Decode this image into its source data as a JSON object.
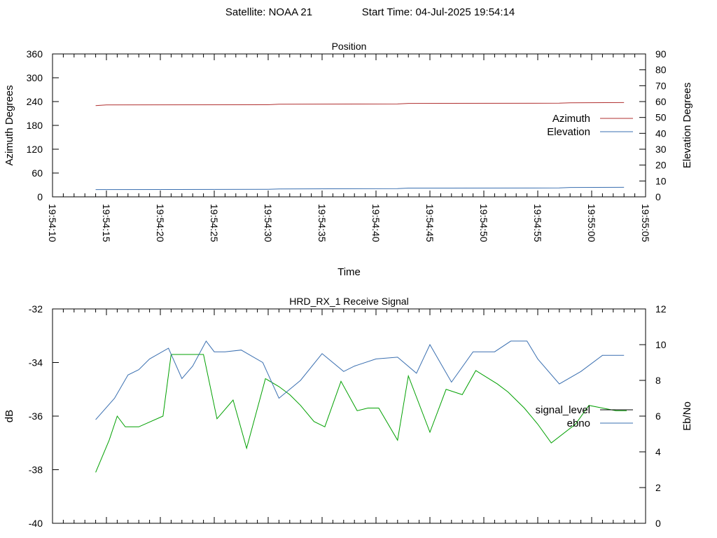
{
  "header": {
    "satellite_text": "Satellite: NOAA 21",
    "start_time_text": "Start Time: 04-Jul-2025 19:54:14"
  },
  "chart_data": [
    {
      "type": "line",
      "title": "Position",
      "xlabel": "Time",
      "ylabel": "Azimuth Degrees",
      "y2label": "Elevation Degrees",
      "x_tick_labels": [
        "19:54:10",
        "19:54:15",
        "19:54:20",
        "19:54:25",
        "19:54:30",
        "19:54:35",
        "19:54:40",
        "19:54:45",
        "19:54:50",
        "19:54:55",
        "19:55:00",
        "19:55:05"
      ],
      "y_ticks": [
        "0",
        "60",
        "120",
        "180",
        "240",
        "300",
        "360"
      ],
      "y2_ticks": [
        "0",
        "10",
        "20",
        "30",
        "40",
        "50",
        "60",
        "70",
        "80",
        "90"
      ],
      "xlim": [
        "19:54:10",
        "19:55:05"
      ],
      "ylim": [
        0,
        360
      ],
      "y2lim": [
        0,
        90
      ],
      "grid": false,
      "legend_position": "right",
      "colors": {
        "Azimuth": "#b03030",
        "Elevation": "#3a6fb0"
      },
      "series": [
        {
          "name": "Azimuth",
          "axis": "left",
          "x": [
            "19:54:14",
            "19:54:15",
            "19:54:30",
            "19:54:31",
            "19:54:42",
            "19:54:43",
            "19:54:57",
            "19:54:58",
            "19:55:03"
          ],
          "values": [
            230.0,
            231.5,
            232.0,
            233.5,
            234.0,
            235.5,
            236.0,
            237.0,
            237.5
          ]
        },
        {
          "name": "Elevation",
          "axis": "right",
          "x": [
            "19:54:14",
            "19:54:30",
            "19:54:31",
            "19:54:42",
            "19:54:43",
            "19:54:57",
            "19:54:58",
            "19:55:03"
          ],
          "values": [
            4.6,
            4.7,
            5.0,
            5.2,
            5.5,
            5.6,
            5.9,
            6.0
          ]
        }
      ]
    },
    {
      "type": "line",
      "title": "HRD_RX_1 Receive Signal",
      "xlabel": "",
      "ylabel": "dB",
      "y2label": "Eb/No",
      "y_ticks": [
        "-40",
        "-38",
        "-36",
        "-34",
        "-32"
      ],
      "y2_ticks": [
        "0",
        "2",
        "4",
        "6",
        "8",
        "10",
        "12"
      ],
      "xlim": [
        "19:54:10",
        "19:55:05"
      ],
      "ylim": [
        -40,
        -32
      ],
      "y2lim": [
        0,
        12
      ],
      "grid": false,
      "legend_position": "right",
      "colors": {
        "signal_level": "#00a000",
        "ebno": "#3a6fb0",
        "signal_level_legend": "#000000"
      },
      "series": [
        {
          "name": "signal_level",
          "axis": "left",
          "x": [
            "19:54:14",
            "19:54:15.25",
            "19:54:16",
            "19:54:16.75",
            "19:54:18",
            "19:54:20.25",
            "19:54:21",
            "19:54:22",
            "19:54:23",
            "19:54:24",
            "19:54:25.25",
            "19:54:26.75",
            "19:54:28",
            "19:54:29.75",
            "19:54:31",
            "19:54:32",
            "19:54:33",
            "19:54:34.25",
            "19:54:35.25",
            "19:54:36.75",
            "19:54:38.25",
            "19:54:39.25",
            "19:54:40.25",
            "19:54:42",
            "19:54:43",
            "19:54:45",
            "19:54:46.5",
            "19:54:48",
            "19:54:49.25",
            "19:54:51.25",
            "19:54:52.25",
            "19:54:53.75",
            "19:54:55",
            "19:54:56.25",
            "19:54:58.5",
            "19:54:59.75",
            "19:55:01",
            "19:55:02.25",
            "19:55:03.25"
          ],
          "values": [
            -38.1,
            -36.9,
            -36.0,
            -36.4,
            -36.4,
            -36.0,
            -33.7,
            -33.7,
            -33.7,
            -33.7,
            -36.1,
            -35.4,
            -37.2,
            -34.6,
            -34.9,
            -35.2,
            -35.6,
            -36.2,
            -36.4,
            -34.7,
            -35.8,
            -35.7,
            -35.7,
            -36.9,
            -34.5,
            -36.6,
            -35.0,
            -35.2,
            -34.3,
            -34.8,
            -35.1,
            -35.7,
            -36.3,
            -37.0,
            -36.3,
            -35.6,
            -35.7,
            -35.8,
            -35.8
          ]
        },
        {
          "name": "ebno",
          "axis": "right",
          "x": [
            "19:54:14",
            "19:54:15.75",
            "19:54:17",
            "19:54:18",
            "19:54:19",
            "19:54:20.75",
            "19:54:22",
            "19:54:23",
            "19:54:24.25",
            "19:54:25",
            "19:54:26",
            "19:54:27.5",
            "19:54:29.5",
            "19:54:31",
            "19:54:33",
            "19:54:35",
            "19:54:37",
            "19:54:38",
            "19:54:40",
            "19:54:42",
            "19:54:43.75",
            "19:54:45",
            "19:54:47",
            "19:54:49",
            "19:54:51",
            "19:54:52.5",
            "19:54:54",
            "19:54:55",
            "19:54:57",
            "19:54:59",
            "19:55:01",
            "19:55:02",
            "19:55:03"
          ],
          "values": [
            5.8,
            7.0,
            8.3,
            8.6,
            9.2,
            9.8,
            8.1,
            8.8,
            10.2,
            9.6,
            9.6,
            9.7,
            9.0,
            7.0,
            8.0,
            9.5,
            8.5,
            8.8,
            9.2,
            9.3,
            8.4,
            10.0,
            7.9,
            9.6,
            9.6,
            10.2,
            10.2,
            9.2,
            7.8,
            8.5,
            9.4,
            9.4,
            9.4
          ]
        }
      ]
    }
  ]
}
